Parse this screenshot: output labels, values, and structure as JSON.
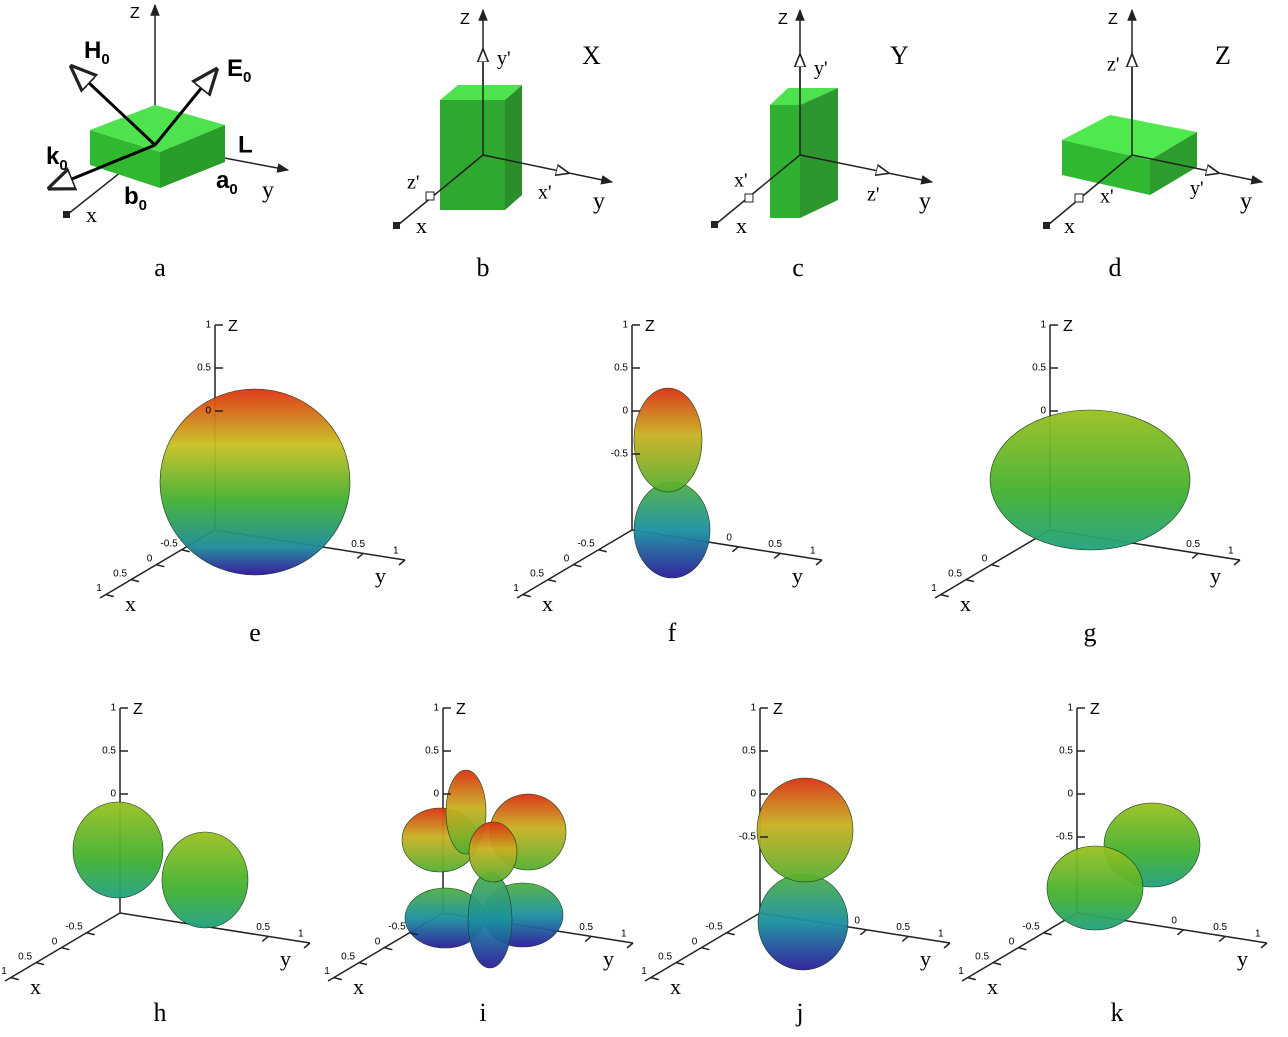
{
  "panels_top": [
    {
      "caption": "a",
      "labels": {
        "z": "Z",
        "h": "H",
        "h_sub": "0",
        "e": "E",
        "e_sub": "0",
        "k": "k",
        "k_sub": "0",
        "l": "L",
        "b": "b",
        "b_sub": "0",
        "a": "a",
        "a_sub": "0",
        "y": "y",
        "x": "x"
      }
    },
    {
      "caption": "b",
      "title": "X",
      "labels": {
        "z": "Z",
        "y_prime": "y'",
        "z_prime": "z'",
        "x_prime": "x'",
        "y": "y",
        "x": "x"
      }
    },
    {
      "caption": "c",
      "title": "Y",
      "labels": {
        "z": "Z",
        "y_prime": "y'",
        "x_prime": "x'",
        "z_prime": "z'",
        "y": "y",
        "x": "x"
      }
    },
    {
      "caption": "d",
      "title": "Z",
      "labels": {
        "z": "Z",
        "z_prime": "z'",
        "x_prime": "x'",
        "y_prime": "y'",
        "y": "y",
        "x": "x"
      }
    }
  ],
  "patterns": [
    {
      "caption": "e",
      "z_label": "Z",
      "x_label": "x",
      "y_label": "y",
      "z_ticks": [
        "1",
        "0.5",
        "0"
      ],
      "x_ticks": [
        "1",
        "0.5",
        "0",
        "-0.5"
      ],
      "y_ticks": [
        "0.5",
        "1"
      ]
    },
    {
      "caption": "f",
      "z_label": "Z",
      "x_label": "x",
      "y_label": "y",
      "z_ticks": [
        "1",
        "0.5",
        "0",
        "-0.5"
      ],
      "x_ticks": [
        "1",
        "0.5",
        "0",
        "-0.5"
      ],
      "y_ticks": [
        "0",
        "0.5",
        "1"
      ]
    },
    {
      "caption": "g",
      "z_label": "Z",
      "x_label": "x",
      "y_label": "y",
      "z_ticks": [
        "1",
        "0.5",
        "0"
      ],
      "x_ticks": [
        "1",
        "0.5",
        "0"
      ],
      "y_ticks": [
        "0.5",
        "1"
      ]
    },
    {
      "caption": "h",
      "z_label": "Z",
      "x_label": "x",
      "y_label": "y",
      "z_ticks": [
        "1",
        "0.5",
        "0"
      ],
      "x_ticks": [
        "1",
        "0.5",
        "0",
        "-0.5"
      ],
      "y_ticks": [
        "0.5",
        "1"
      ]
    },
    {
      "caption": "i",
      "z_label": "Z",
      "x_label": "x",
      "y_label": "y",
      "z_ticks": [
        "1",
        "0.5",
        "0"
      ],
      "x_ticks": [
        "1",
        "0.5",
        "0",
        "-0.5"
      ],
      "y_ticks": [
        "0.5",
        "1"
      ]
    },
    {
      "caption": "j",
      "z_label": "Z",
      "x_label": "x",
      "y_label": "y",
      "z_ticks": [
        "1",
        "0.5",
        "0",
        "-0.5"
      ],
      "x_ticks": [
        "1",
        "0.5",
        "0",
        "-0.5"
      ],
      "y_ticks": [
        "0",
        "0.5",
        "1"
      ]
    },
    {
      "caption": "k",
      "z_label": "Z",
      "x_label": "x",
      "y_label": "y",
      "z_ticks": [
        "1",
        "0.5",
        "0",
        "-0.5"
      ],
      "x_ticks": [
        "1",
        "0.5",
        "0",
        "-0.5"
      ],
      "y_ticks": [
        "0",
        "0.5",
        "1"
      ]
    }
  ]
}
